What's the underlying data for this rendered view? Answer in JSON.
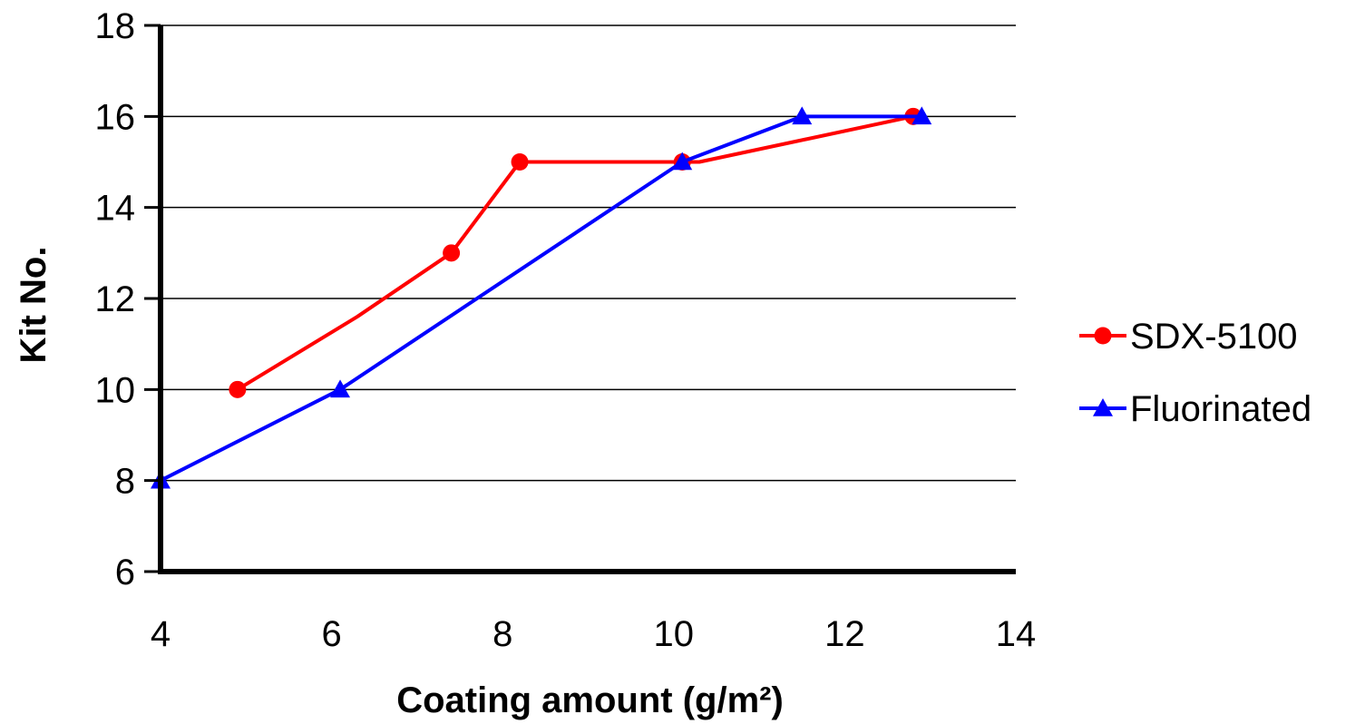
{
  "chart_data": {
    "type": "line",
    "xlabel": "Coating amount (g/m²)",
    "ylabel": "Kit No.",
    "xlim": [
      4,
      14
    ],
    "ylim": [
      6,
      18
    ],
    "x_ticks": [
      4,
      6,
      8,
      10,
      12,
      14
    ],
    "y_ticks": [
      6,
      8,
      10,
      12,
      14,
      16,
      18
    ],
    "grid": "horizontal",
    "legend_position": "right",
    "series": [
      {
        "name": "SDX-5100",
        "color": "#ff0000",
        "marker": "circle",
        "x": [
          4.9,
          6.3,
          7.4,
          8.2,
          10.1,
          10.3,
          12.8
        ],
        "y": [
          10,
          11.6,
          13,
          15,
          15,
          15,
          16
        ],
        "marker_indices": [
          0,
          2,
          3,
          4,
          6
        ]
      },
      {
        "name": "Fluorinated",
        "color": "#0000ff",
        "marker": "triangle",
        "x": [
          4.0,
          6.1,
          10.1,
          11.5,
          12.9
        ],
        "y": [
          8,
          10,
          15,
          16,
          16
        ],
        "marker_indices": [
          0,
          1,
          2,
          3,
          4
        ]
      }
    ]
  }
}
